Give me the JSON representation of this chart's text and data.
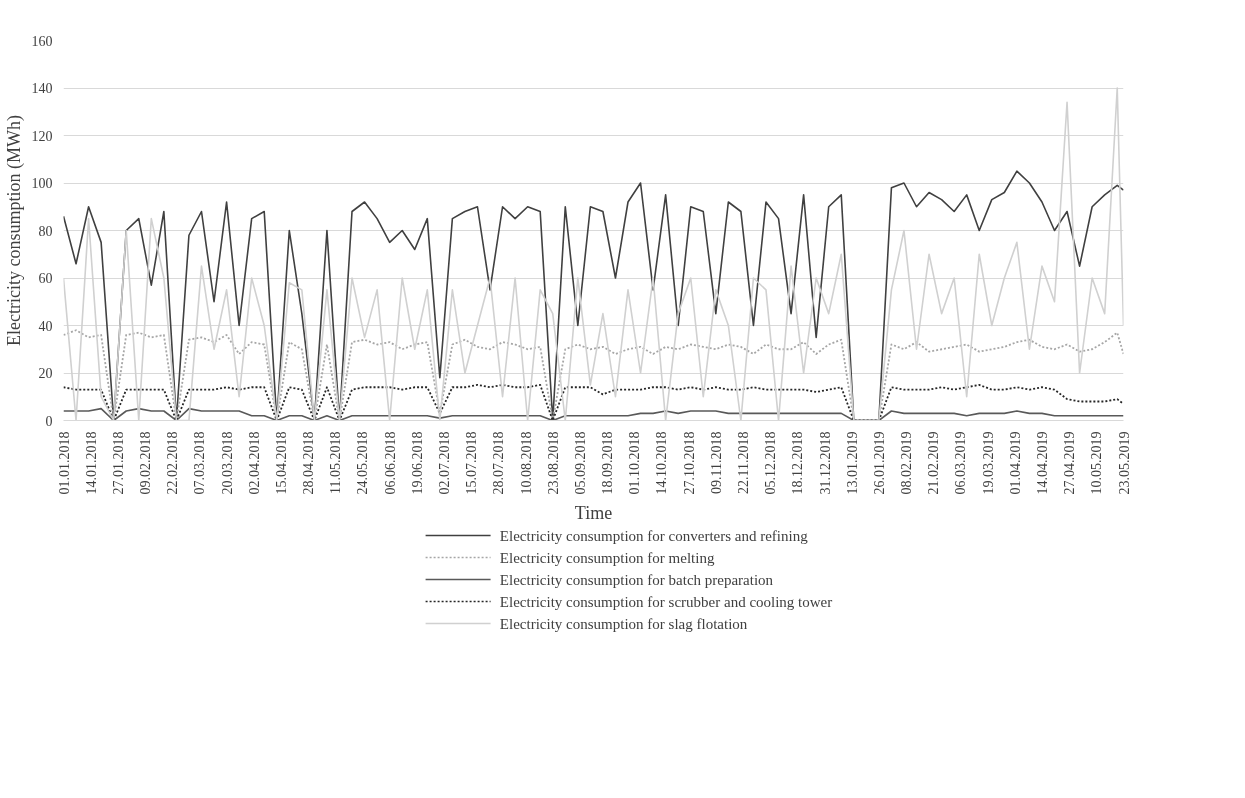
{
  "chart_data": {
    "type": "line",
    "xlabel": "Time",
    "ylabel": "Electricity consumption (MWh)",
    "x": [
      "2018-01-01",
      "2018-01-07",
      "2018-01-13",
      "2018-01-19",
      "2018-01-25",
      "2018-01-31",
      "2018-02-06",
      "2018-02-12",
      "2018-02-18",
      "2018-02-24",
      "2018-03-02",
      "2018-03-08",
      "2018-03-14",
      "2018-03-20",
      "2018-03-26",
      "2018-04-01",
      "2018-04-07",
      "2018-04-13",
      "2018-04-19",
      "2018-04-25",
      "2018-05-01",
      "2018-05-07",
      "2018-05-13",
      "2018-05-19",
      "2018-05-25",
      "2018-05-31",
      "2018-06-06",
      "2018-06-12",
      "2018-06-18",
      "2018-06-24",
      "2018-06-30",
      "2018-07-06",
      "2018-07-12",
      "2018-07-18",
      "2018-07-24",
      "2018-07-30",
      "2018-08-05",
      "2018-08-11",
      "2018-08-17",
      "2018-08-23",
      "2018-08-29",
      "2018-09-04",
      "2018-09-10",
      "2018-09-16",
      "2018-09-22",
      "2018-09-28",
      "2018-10-04",
      "2018-10-10",
      "2018-10-16",
      "2018-10-22",
      "2018-10-28",
      "2018-11-03",
      "2018-11-09",
      "2018-11-15",
      "2018-11-21",
      "2018-11-27",
      "2018-12-03",
      "2018-12-09",
      "2018-12-15",
      "2018-12-21",
      "2018-12-27",
      "2019-01-02",
      "2019-01-08",
      "2019-01-14",
      "2019-01-20",
      "2019-01-26",
      "2019-02-01",
      "2019-02-07",
      "2019-02-13",
      "2019-02-19",
      "2019-02-25",
      "2019-03-03",
      "2019-03-09",
      "2019-03-15",
      "2019-03-21",
      "2019-03-27",
      "2019-04-02",
      "2019-04-08",
      "2019-04-14",
      "2019-04-20",
      "2019-04-26",
      "2019-05-02",
      "2019-05-08",
      "2019-05-14",
      "2019-05-20",
      "2019-05-23"
    ],
    "series": [
      {
        "name": "Electricity consumption for converters and refining",
        "color": "#404040",
        "line_style": "solid",
        "values": [
          86,
          66,
          90,
          75,
          0,
          80,
          85,
          57,
          88,
          0,
          78,
          88,
          50,
          92,
          40,
          85,
          88,
          0,
          80,
          45,
          0,
          80,
          0,
          88,
          92,
          85,
          75,
          80,
          72,
          85,
          18,
          85,
          88,
          90,
          55,
          90,
          85,
          90,
          88,
          0,
          90,
          40,
          90,
          88,
          60,
          92,
          100,
          55,
          95,
          40,
          90,
          88,
          45,
          92,
          88,
          40,
          92,
          85,
          45,
          95,
          35,
          90,
          95,
          0,
          0,
          0,
          98,
          100,
          90,
          96,
          93,
          88,
          95,
          80,
          93,
          96,
          105,
          100,
          92,
          80,
          88,
          65,
          90,
          95,
          99,
          97
        ]
      },
      {
        "name": "Electricity consumption for melting",
        "color": "#a6a6a6",
        "line_style": "dotted",
        "values": [
          36,
          38,
          35,
          36,
          0,
          36,
          37,
          35,
          36,
          0,
          34,
          35,
          33,
          36,
          28,
          33,
          32,
          0,
          33,
          30,
          0,
          32,
          0,
          33,
          34,
          32,
          33,
          30,
          32,
          33,
          3,
          32,
          34,
          31,
          30,
          33,
          32,
          30,
          31,
          0,
          30,
          32,
          30,
          31,
          28,
          30,
          31,
          28,
          31,
          30,
          32,
          31,
          30,
          32,
          31,
          28,
          32,
          30,
          30,
          33,
          28,
          32,
          34,
          0,
          0,
          0,
          32,
          30,
          33,
          29,
          30,
          31,
          32,
          29,
          30,
          31,
          33,
          34,
          31,
          30,
          32,
          29,
          30,
          33,
          37,
          28
        ]
      },
      {
        "name": "Electricity consumption for batch preparation",
        "color": "#595959",
        "line_style": "solid",
        "values": [
          4,
          4,
          4,
          5,
          0,
          4,
          5,
          4,
          4,
          0,
          5,
          4,
          4,
          4,
          4,
          2,
          2,
          0,
          2,
          2,
          0,
          2,
          0,
          2,
          2,
          2,
          2,
          2,
          2,
          2,
          1,
          2,
          2,
          2,
          2,
          2,
          2,
          2,
          2,
          0,
          2,
          2,
          2,
          2,
          2,
          2,
          3,
          3,
          4,
          3,
          4,
          4,
          4,
          3,
          3,
          3,
          3,
          3,
          3,
          3,
          3,
          3,
          3,
          0,
          0,
          0,
          4,
          3,
          3,
          3,
          3,
          3,
          2,
          3,
          3,
          3,
          4,
          3,
          3,
          2,
          2,
          2,
          2,
          2,
          2,
          2
        ]
      },
      {
        "name": "Electricity consumption for scrubber and cooling tower",
        "color": "#262626",
        "line_style": "dotted",
        "values": [
          14,
          13,
          13,
          13,
          0,
          13,
          13,
          13,
          13,
          0,
          13,
          13,
          13,
          14,
          13,
          14,
          14,
          0,
          14,
          13,
          0,
          14,
          0,
          13,
          14,
          14,
          14,
          13,
          14,
          14,
          3,
          14,
          14,
          15,
          14,
          15,
          14,
          14,
          15,
          0,
          14,
          14,
          14,
          11,
          13,
          13,
          13,
          14,
          14,
          13,
          14,
          13,
          14,
          13,
          13,
          14,
          13,
          13,
          13,
          13,
          12,
          13,
          14,
          0,
          0,
          0,
          14,
          13,
          13,
          13,
          14,
          13,
          14,
          15,
          13,
          13,
          14,
          13,
          14,
          13,
          9,
          8,
          8,
          8,
          9,
          7
        ]
      },
      {
        "name": "Electricity consumption for slag flotation",
        "color": "#d0d0d0",
        "line_style": "solid",
        "values": [
          60,
          0,
          85,
          10,
          0,
          80,
          0,
          85,
          60,
          0,
          0,
          65,
          30,
          55,
          10,
          60,
          40,
          0,
          58,
          55,
          0,
          55,
          0,
          60,
          35,
          55,
          0,
          60,
          30,
          55,
          0,
          55,
          20,
          40,
          60,
          10,
          60,
          0,
          55,
          45,
          0,
          60,
          15,
          45,
          10,
          55,
          20,
          60,
          0,
          45,
          60,
          10,
          55,
          40,
          0,
          60,
          55,
          0,
          65,
          20,
          60,
          45,
          70,
          0,
          0,
          0,
          55,
          80,
          30,
          70,
          45,
          60,
          10,
          70,
          40,
          60,
          75,
          30,
          65,
          50,
          134,
          20,
          60,
          45,
          140,
          40
        ]
      }
    ],
    "xlim": [
      "2018-01-01",
      "2019-05-23"
    ],
    "ylim": [
      0,
      160
    ],
    "yticks": [
      0,
      20,
      40,
      60,
      80,
      100,
      120,
      140,
      160
    ],
    "xticks": [
      {
        "value": "2018-01-01",
        "label": "01.01.2018"
      },
      {
        "value": "2018-01-14",
        "label": "14.01.2018"
      },
      {
        "value": "2018-01-27",
        "label": "27.01.2018"
      },
      {
        "value": "2018-02-09",
        "label": "09.02.2018"
      },
      {
        "value": "2018-02-22",
        "label": "22.02.2018"
      },
      {
        "value": "2018-03-07",
        "label": "07.03.2018"
      },
      {
        "value": "2018-03-20",
        "label": "20.03.2018"
      },
      {
        "value": "2018-04-02",
        "label": "02.04.2018"
      },
      {
        "value": "2018-04-15",
        "label": "15.04.2018"
      },
      {
        "value": "2018-04-28",
        "label": "28.04.2018"
      },
      {
        "value": "2018-05-11",
        "label": "11.05.2018"
      },
      {
        "value": "2018-05-24",
        "label": "24.05.2018"
      },
      {
        "value": "2018-06-06",
        "label": "06.06.2018"
      },
      {
        "value": "2018-06-19",
        "label": "19.06.2018"
      },
      {
        "value": "2018-07-02",
        "label": "02.07.2018"
      },
      {
        "value": "2018-07-15",
        "label": "15.07.2018"
      },
      {
        "value": "2018-07-28",
        "label": "28.07.2018"
      },
      {
        "value": "2018-08-10",
        "label": "10.08.2018"
      },
      {
        "value": "2018-08-23",
        "label": "23.08.2018"
      },
      {
        "value": "2018-09-05",
        "label": "05.09.2018"
      },
      {
        "value": "2018-09-18",
        "label": "18.09.2018"
      },
      {
        "value": "2018-10-01",
        "label": "01.10.2018"
      },
      {
        "value": "2018-10-14",
        "label": "14.10.2018"
      },
      {
        "value": "2018-10-27",
        "label": "27.10.2018"
      },
      {
        "value": "2018-11-09",
        "label": "09.11.2018"
      },
      {
        "value": "2018-11-22",
        "label": "22.11.2018"
      },
      {
        "value": "2018-12-05",
        "label": "05.12.2018"
      },
      {
        "value": "2018-12-18",
        "label": "18.12.2018"
      },
      {
        "value": "2018-12-31",
        "label": "31.12.2018"
      },
      {
        "value": "2019-01-13",
        "label": "13.01.2019"
      },
      {
        "value": "2019-01-26",
        "label": "26.01.2019"
      },
      {
        "value": "2019-02-08",
        "label": "08.02.2019"
      },
      {
        "value": "2019-02-21",
        "label": "21.02.2019"
      },
      {
        "value": "2019-03-06",
        "label": "06.03.2019"
      },
      {
        "value": "2019-03-19",
        "label": "19.03.2019"
      },
      {
        "value": "2019-04-01",
        "label": "01.04.2019"
      },
      {
        "value": "2019-04-14",
        "label": "14.04.2019"
      },
      {
        "value": "2019-04-27",
        "label": "27.04.2019"
      },
      {
        "value": "2019-05-10",
        "label": "10.05.2019"
      },
      {
        "value": "2019-05-23",
        "label": "23.05.2019"
      }
    ],
    "grid": "y",
    "legend": "bottom",
    "marker": "none"
  }
}
